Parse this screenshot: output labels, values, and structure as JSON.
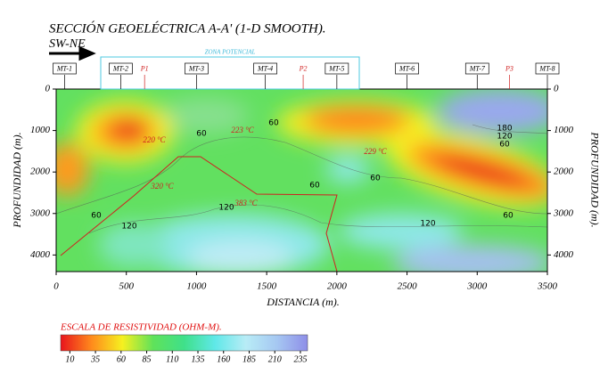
{
  "chart_data": {
    "type": "contour",
    "title": "SECCIÓN GEOELÉCTRICA A-A' (1-D SMOOTH).",
    "subtitle": "SW-NE",
    "xlabel": "DISTANCIA (m).",
    "ylabel": "PROFUNDIDAD (m).",
    "xlim": [
      0,
      3500
    ],
    "xticks": [
      0,
      500,
      1000,
      1500,
      2000,
      2500,
      3000,
      3500
    ],
    "ylim": [
      0,
      4400
    ],
    "yticks": [
      0,
      1000,
      2000,
      3000,
      4000
    ],
    "zone_label": "ZONA POTENCIAL",
    "stations": [
      {
        "name": "MT-1",
        "x": 60
      },
      {
        "name": "MT-2",
        "x": 460
      },
      {
        "name": "P1",
        "x": 630
      },
      {
        "name": "MT-3",
        "x": 1000
      },
      {
        "name": "MT-4",
        "x": 1490
      },
      {
        "name": "P2",
        "x": 1760
      },
      {
        "name": "MT-5",
        "x": 2000
      },
      {
        "name": "MT-6",
        "x": 2500
      },
      {
        "name": "MT-7",
        "x": 3000
      },
      {
        "name": "P3",
        "x": 3230
      },
      {
        "name": "MT-8",
        "x": 3500
      }
    ],
    "temperature_labels": [
      "220 °C",
      "223 °C",
      "229 °C",
      "320 °C",
      "383 °C"
    ],
    "contour_labels": [
      "60",
      "60",
      "60",
      "60",
      "60",
      "60",
      "120",
      "120",
      "120",
      "180",
      "120",
      "60"
    ],
    "colorbar": {
      "title": "ESCALA DE RESISTIVIDAD (OHM-M).",
      "clim": [
        1,
        242
      ],
      "ticks": [
        10,
        35,
        60,
        85,
        110,
        135,
        160,
        185,
        210,
        235
      ],
      "colormap": [
        "#e8141c",
        "#ff8a1c",
        "#f6f020",
        "#5fe25a",
        "#3fe08a",
        "#5fe8e8",
        "#b8ecf6",
        "#a6c8f2",
        "#8e8ee8"
      ]
    }
  }
}
